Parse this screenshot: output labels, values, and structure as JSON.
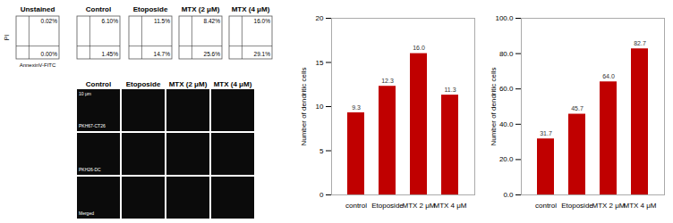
{
  "chart_data": [
    {
      "type": "bar",
      "categories": [
        "control",
        "Etoposide",
        "MTX 2 μM",
        "MTX 4 μM"
      ],
      "values": [
        9.3,
        12.3,
        16.0,
        11.3
      ],
      "value_labels": [
        "9.3",
        "12.3",
        "16.0",
        "11.3"
      ],
      "color": "#c00000",
      "y_label": "Number of dendritic cells",
      "ylim": [
        0,
        20
      ],
      "yticks": [
        0,
        5,
        10,
        15,
        20
      ],
      "grid": false,
      "data_labels": true
    },
    {
      "type": "bar",
      "categories": [
        "control",
        "Etoposide",
        "MTX 2 μM",
        "MTX 4 μM"
      ],
      "values": [
        31.7,
        45.7,
        64.0,
        82.7
      ],
      "value_labels": [
        "31.7",
        "45.7",
        "64.0",
        "82.7"
      ],
      "color": "#c00000",
      "y_label": "Number of dendritic cells",
      "ylim": [
        0,
        100
      ],
      "yticks": [
        {
          "value": 0,
          "label": "0.0"
        },
        {
          "value": 20,
          "label": "20.0"
        },
        {
          "value": 40,
          "label": "40.0"
        },
        {
          "value": 60,
          "label": "60.0"
        },
        {
          "value": 80,
          "label": "80.0"
        },
        {
          "value": 100,
          "label": "100.0"
        }
      ],
      "grid": false,
      "data_labels": true
    }
  ],
  "flow_cytometry": {
    "x_label": "AnnexinV-FITC",
    "y_label": "PI",
    "panels": [
      {
        "title": "Unstained",
        "upper_right": "0.02%",
        "lower_right": "0.00%"
      },
      {
        "title": "Control",
        "upper_right": "6.10%",
        "lower_right": "1.45%"
      },
      {
        "title": "Etoposide",
        "upper_right": "11.5%",
        "lower_right": "14.7%"
      },
      {
        "title": "MTX (2 μM)",
        "upper_right": "8.42%",
        "lower_right": "25.6%"
      },
      {
        "title": "MTX (4 μM)",
        "upper_right": "16.0%",
        "lower_right": "29.1%"
      }
    ]
  },
  "microscopy": {
    "columns": [
      "Control",
      "Etoposide",
      "MTX (2 μM)",
      "MTX (4 μM)"
    ],
    "rows": [
      "PKH67-CT26",
      "PKH26-DC",
      "Merged"
    ],
    "scale_bar": "10 μm"
  }
}
